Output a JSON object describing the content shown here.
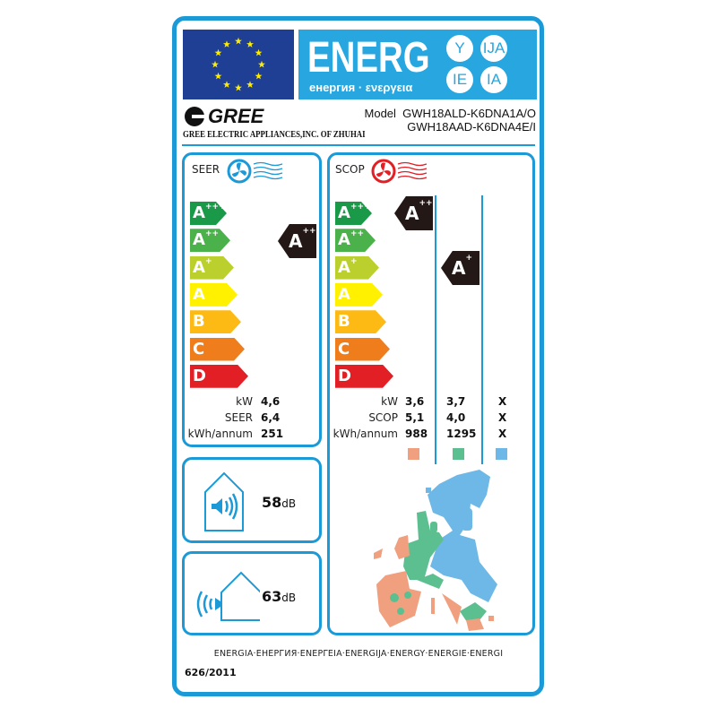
{
  "header": {
    "energy_word": "ENERG",
    "energy_sub": "енергия · ενεργεια",
    "suffixes": [
      "Y",
      "IJA",
      "IE",
      "IA"
    ],
    "brand": "GREE",
    "company": "GREE ELECTRIC APPLIANCES,INC. OF ZHUHAI",
    "model_label": "Model",
    "model_outdoor": "GWH18ALD-K6DNA1A/O",
    "model_indoor": "GWH18AAD-K6DNA4E/I"
  },
  "scale": [
    {
      "cls": "A",
      "sup": "+++",
      "color": "#1a9a48"
    },
    {
      "cls": "A",
      "sup": "++",
      "color": "#4bb14a"
    },
    {
      "cls": "A",
      "sup": "+",
      "color": "#bcd02d"
    },
    {
      "cls": "A",
      "sup": "",
      "color": "#fff100"
    },
    {
      "cls": "B",
      "sup": "",
      "color": "#fdba14"
    },
    {
      "cls": "C",
      "sup": "",
      "color": "#ef7d1b"
    },
    {
      "cls": "D",
      "sup": "",
      "color": "#e31f26"
    }
  ],
  "seer": {
    "title": "SEER",
    "rating": {
      "cls": "A",
      "sup": "++"
    },
    "labels": [
      "kW",
      "SEER",
      "kWh/annum"
    ],
    "values": [
      "4,6",
      "6,4",
      "251"
    ]
  },
  "scop": {
    "title": "SCOP",
    "ratings": [
      {
        "cls": "A",
        "sup": "+++"
      },
      {
        "cls": "A",
        "sup": "+"
      }
    ],
    "labels": [
      "kW",
      "SCOP",
      "kWh/annum"
    ],
    "columns": [
      {
        "values": [
          "3,6",
          "5,1",
          "988"
        ],
        "color": "#f0a07f"
      },
      {
        "values": [
          "3,7",
          "4,0",
          "1295"
        ],
        "color": "#5cbf8f"
      },
      {
        "values": [
          "X",
          "X",
          "X"
        ],
        "color": "#6db8e6"
      }
    ]
  },
  "noise": {
    "indoor": {
      "value": "58",
      "unit": "dB"
    },
    "outdoor": {
      "value": "63",
      "unit": "dB"
    }
  },
  "footer": {
    "languages": "ENERGIA·ЕНЕРГИЯ·ΕΝΕΡΓΕΙΑ·ENERGIJA·ENERGY·ENERGIE·ENERGI",
    "regulation": "626/2011"
  },
  "colors": {
    "frame": "#1b9ad7",
    "flag": "#1f3f95",
    "banner": "#27a6df",
    "cooling": "#1b9ad7",
    "heating": "#e31f26"
  }
}
